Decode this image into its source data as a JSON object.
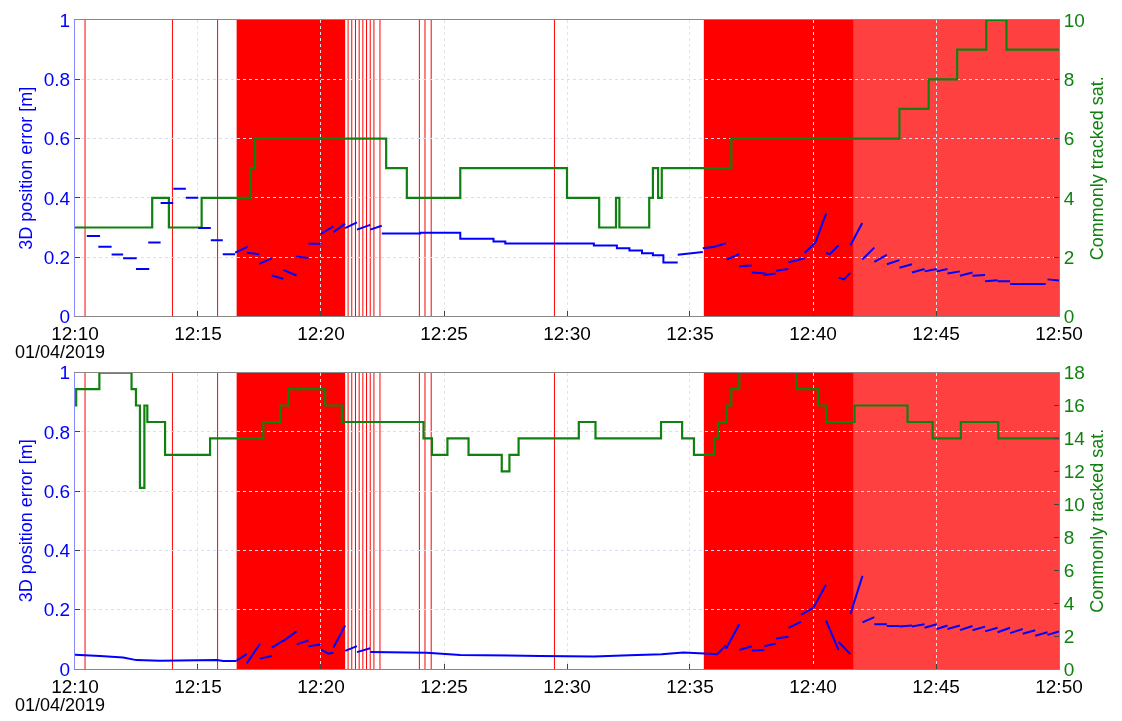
{
  "chart_data": [
    {
      "type": "line",
      "ylabel": "3D position error [m]",
      "y2label": "Commonly tracked sat.",
      "annotations": [
        "01/04/2019"
      ],
      "grid": true,
      "xlim": [
        12.1667,
        12.8333
      ],
      "xticks": [
        {
          "value": 12.1667,
          "label": "12:10"
        },
        {
          "value": 12.25,
          "label": "12:15"
        },
        {
          "value": 12.3333,
          "label": "12:20"
        },
        {
          "value": 12.4167,
          "label": "12:25"
        },
        {
          "value": 12.5,
          "label": "12:30"
        },
        {
          "value": 12.5833,
          "label": "12:35"
        },
        {
          "value": 12.6667,
          "label": "12:40"
        },
        {
          "value": 12.75,
          "label": "12:45"
        },
        {
          "value": 12.8333,
          "label": "12:50"
        }
      ],
      "ylim": [
        0,
        1
      ],
      "yticks": [
        0,
        0.2,
        0.4,
        0.6,
        0.8,
        1
      ],
      "y2lim": [
        0,
        10
      ],
      "y2ticks": [
        0,
        2,
        4,
        6,
        8,
        10
      ],
      "bands": [
        {
          "axis": "x",
          "from": 12.2762,
          "to": 12.3497,
          "color": "#ff0000"
        },
        {
          "axis": "x",
          "from": 12.5927,
          "to": 12.6943,
          "color": "#ff0000"
        },
        {
          "axis": "x",
          "from": 12.6943,
          "to": 12.8333,
          "color": "#ff4040"
        }
      ],
      "ref_lines": [
        {
          "axis": "x",
          "value": 12.1735,
          "color": "#ff0000"
        },
        {
          "axis": "x",
          "value": 12.2327,
          "color": "#ff0000"
        },
        {
          "axis": "x",
          "value": 12.2633,
          "color": "#ff0000"
        },
        {
          "axis": "x",
          "value": 12.3517,
          "color": "#ff0000"
        },
        {
          "axis": "x",
          "value": 12.3542,
          "color": "#ff0000"
        },
        {
          "axis": "x",
          "value": 12.3567,
          "color": "#ff0000"
        },
        {
          "axis": "x",
          "value": 12.3592,
          "color": "#ff0000"
        },
        {
          "axis": "x",
          "value": 12.3617,
          "color": "#ff0000"
        },
        {
          "axis": "x",
          "value": 12.3642,
          "color": "#ff0000"
        },
        {
          "axis": "x",
          "value": 12.3667,
          "color": "#ff0000"
        },
        {
          "axis": "x",
          "value": 12.3692,
          "color": "#ff0000"
        },
        {
          "axis": "x",
          "value": 12.3733,
          "color": "#ff0000"
        },
        {
          "axis": "x",
          "value": 12.4,
          "color": "#ff0000"
        },
        {
          "axis": "x",
          "value": 12.4038,
          "color": "#ff0000"
        },
        {
          "axis": "x",
          "value": 12.408,
          "color": "#ff0000"
        },
        {
          "axis": "x",
          "value": 12.4915,
          "color": "#ff0000"
        }
      ],
      "series": [
        {
          "type": "line",
          "color": "#0000ff",
          "x": [
            12.1747,
            12.1837,
            null,
            12.1825,
            12.1915,
            null,
            12.1915,
            12.1993,
            null,
            12.1993,
            12.2085,
            null,
            12.208,
            12.217,
            null,
            12.2163,
            12.2247,
            null,
            12.2247,
            12.2333,
            null,
            12.2333,
            12.2418,
            null,
            12.2418,
            12.2502,
            null,
            12.2502,
            12.2587,
            null,
            12.2587,
            12.2668,
            null,
            12.2668,
            12.2752,
            null,
            12.2752,
            12.2837,
            null,
            12.283,
            12.2915,
            null,
            12.2915,
            12.3,
            null,
            12.3,
            12.3078,
            null,
            12.3078,
            12.3168,
            null,
            12.3165,
            12.3248,
            null,
            12.3248,
            12.3332,
            null,
            12.3332,
            12.3417,
            null,
            12.3417,
            12.3497,
            null,
            12.3497,
            12.3577,
            null,
            12.3577,
            12.3667,
            null,
            12.3667,
            12.3745,
            null,
            12.3745,
            12.4005,
            12.4005,
            12.4277,
            12.4277,
            12.4502,
            12.4502,
            12.4582,
            12.4582,
            12.5182,
            12.5182,
            12.5338,
            12.5338,
            12.5423,
            12.5423,
            12.5508,
            12.5508,
            12.5582,
            12.5582,
            12.5653,
            12.5653,
            12.575,
            null,
            12.575,
            12.592,
            null,
            12.592,
            12.6,
            12.6077,
            null,
            12.6082,
            12.6167,
            null,
            12.6167,
            12.6252,
            null,
            12.6252,
            12.6348,
            null,
            12.633,
            12.6415,
            null,
            12.6415,
            12.65,
            null,
            12.65,
            12.661,
            null,
            12.661,
            12.6682,
            null,
            12.6682,
            12.6755,
            null,
            12.6755,
            12.678,
            12.684,
            null,
            12.684,
            12.6877,
            12.692,
            null,
            12.692,
            12.7,
            null,
            12.7,
            12.7082,
            null,
            12.7082,
            12.7167,
            null,
            12.7167,
            12.7252,
            null,
            12.7252,
            12.7337,
            null,
            12.7337,
            12.7422,
            null,
            12.7422,
            12.7505,
            null,
            12.7505,
            12.7578,
            null,
            12.7578,
            12.7662,
            null,
            12.7662,
            12.7747,
            null,
            12.7747,
            12.7832,
            null,
            12.7832,
            12.7917,
            null,
            12.7917,
            12.8002,
            null,
            12.8002,
            12.8243,
            null,
            12.8255,
            12.8333
          ],
          "values": [
            0.271,
            0.271,
            null,
            0.235,
            0.235,
            null,
            0.209,
            0.209,
            null,
            0.196,
            0.196,
            null,
            0.16,
            0.16,
            null,
            0.249,
            0.249,
            null,
            0.383,
            0.383,
            null,
            0.431,
            0.431,
            null,
            0.4,
            0.4,
            null,
            0.298,
            0.298,
            null,
            0.257,
            0.257,
            null,
            0.21,
            0.21,
            null,
            0.215,
            0.235,
            null,
            0.215,
            0.21,
            null,
            0.177,
            0.196,
            null,
            0.138,
            0.127,
            null,
            0.157,
            0.138,
            null,
            0.202,
            0.197,
            null,
            0.245,
            0.245,
            null,
            0.278,
            0.304,
            null,
            0.284,
            0.313,
            null,
            0.298,
            0.317,
            null,
            0.293,
            0.309,
            null,
            0.293,
            0.306,
            null,
            0.28,
            0.28,
            0.282,
            0.282,
            0.262,
            0.262,
            0.253,
            0.253,
            0.246,
            0.246,
            0.239,
            0.239,
            0.23,
            0.23,
            0.222,
            0.222,
            0.213,
            0.213,
            0.206,
            0.206,
            0.182,
            0.182,
            null,
            0.208,
            0.217,
            null,
            0.23,
            0.235,
            0.247,
            null,
            0.192,
            0.21,
            null,
            0.169,
            0.172,
            null,
            0.148,
            0.145,
            null,
            0.14,
            0.145,
            null,
            0.154,
            0.16,
            null,
            0.183,
            0.196,
            null,
            0.214,
            0.249,
            null,
            0.249,
            0.347,
            null,
            0.214,
            0.21,
            0.24,
            null,
            0.131,
            0.125,
            0.148,
            null,
            0.24,
            0.315,
            null,
            0.192,
            0.232,
            null,
            0.184,
            0.208,
            null,
            0.176,
            0.19,
            null,
            0.164,
            0.176,
            null,
            0.148,
            0.16,
            null,
            0.152,
            0.16,
            null,
            0.152,
            0.16,
            null,
            0.145,
            0.152,
            null,
            0.137,
            0.148,
            null,
            0.137,
            0.14,
            null,
            0.119,
            0.122,
            null,
            0.119,
            0.119,
            null,
            0.109,
            0.109,
            null,
            0.125,
            0.121
          ]
        },
        {
          "type": "step",
          "axis": "y2",
          "color": "#108010",
          "x": [
            12.1667,
            12.219,
            12.2303,
            12.2525,
            12.2857,
            12.2887,
            12.3775,
            12.3915,
            12.4277,
            12.5,
            12.5218,
            12.5332,
            12.5355,
            12.5557,
            12.5582,
            12.5617,
            12.5642,
            12.6113,
            12.7252,
            12.745,
            12.7643,
            12.784,
            12.7977,
            12.8333
          ],
          "values": [
            3,
            4,
            3,
            4,
            5,
            6,
            5,
            4,
            5,
            4,
            3,
            4,
            3,
            4,
            5,
            4,
            5,
            6,
            7,
            8,
            9,
            10,
            9,
            9
          ]
        }
      ]
    },
    {
      "type": "line",
      "ylabel": "3D position error [m]",
      "y2label": "Commonly tracked sat.",
      "annotations": [
        "01/04/2019"
      ],
      "grid": true,
      "xlim": [
        12.1667,
        12.8333
      ],
      "xticks": [
        {
          "value": 12.1667,
          "label": "12:10"
        },
        {
          "value": 12.25,
          "label": "12:15"
        },
        {
          "value": 12.3333,
          "label": "12:20"
        },
        {
          "value": 12.4167,
          "label": "12:25"
        },
        {
          "value": 12.5,
          "label": "12:30"
        },
        {
          "value": 12.5833,
          "label": "12:35"
        },
        {
          "value": 12.6667,
          "label": "12:40"
        },
        {
          "value": 12.75,
          "label": "12:45"
        },
        {
          "value": 12.8333,
          "label": "12:50"
        }
      ],
      "ylim": [
        0,
        1
      ],
      "yticks": [
        0,
        0.2,
        0.4,
        0.6,
        0.8,
        1
      ],
      "y2lim": [
        0,
        18
      ],
      "y2ticks": [
        0,
        2,
        4,
        6,
        8,
        10,
        12,
        14,
        16,
        18
      ],
      "bands": [
        {
          "axis": "x",
          "from": 12.2762,
          "to": 12.3497,
          "color": "#ff0000"
        },
        {
          "axis": "x",
          "from": 12.5927,
          "to": 12.6943,
          "color": "#ff0000"
        },
        {
          "axis": "x",
          "from": 12.6943,
          "to": 12.8333,
          "color": "#ff4040"
        }
      ],
      "ref_lines": [
        {
          "axis": "x",
          "value": 12.1735,
          "color": "#ff0000"
        },
        {
          "axis": "x",
          "value": 12.2327,
          "color": "#ff0000"
        },
        {
          "axis": "x",
          "value": 12.2633,
          "color": "#ff0000"
        },
        {
          "axis": "x",
          "value": 12.3517,
          "color": "#ff0000"
        },
        {
          "axis": "x",
          "value": 12.3542,
          "color": "#ff0000"
        },
        {
          "axis": "x",
          "value": 12.3567,
          "color": "#ff0000"
        },
        {
          "axis": "x",
          "value": 12.3592,
          "color": "#ff0000"
        },
        {
          "axis": "x",
          "value": 12.3617,
          "color": "#ff0000"
        },
        {
          "axis": "x",
          "value": 12.3642,
          "color": "#ff0000"
        },
        {
          "axis": "x",
          "value": 12.3667,
          "color": "#ff0000"
        },
        {
          "axis": "x",
          "value": 12.3692,
          "color": "#ff0000"
        },
        {
          "axis": "x",
          "value": 12.3733,
          "color": "#ff0000"
        },
        {
          "axis": "x",
          "value": 12.4,
          "color": "#ff0000"
        },
        {
          "axis": "x",
          "value": 12.4038,
          "color": "#ff0000"
        },
        {
          "axis": "x",
          "value": 12.408,
          "color": "#ff0000"
        },
        {
          "axis": "x",
          "value": 12.4915,
          "color": "#ff0000"
        }
      ],
      "series": [
        {
          "type": "line",
          "color": "#0000ff",
          "x": [
            12.1667,
            12.1837,
            12.1993,
            12.2083,
            12.2243,
            12.2627,
            12.2672,
            12.2762,
            null,
            12.2762,
            12.283,
            null,
            12.283,
            12.292,
            null,
            12.292,
            12.3,
            null,
            12.3,
            12.3078,
            null,
            12.3078,
            12.3168,
            null,
            12.3168,
            12.3248,
            null,
            12.3248,
            12.3332,
            null,
            12.3332,
            12.3383,
            12.3417,
            null,
            12.3417,
            12.3497,
            null,
            12.3497,
            12.3577,
            null,
            12.3577,
            12.3667,
            null,
            12.3667,
            12.405,
            12.4277,
            12.4818,
            12.5182,
            12.5423,
            12.5642,
            12.5787,
            12.5932,
            12.6017,
            12.6077,
            null,
            12.6077,
            12.6167,
            null,
            12.6167,
            12.6252,
            null,
            12.6252,
            12.6337,
            null,
            12.6337,
            12.6415,
            null,
            12.6415,
            12.65,
            null,
            12.65,
            12.6585,
            null,
            12.6585,
            12.667,
            null,
            12.667,
            12.6755,
            null,
            12.6755,
            12.684,
            null,
            12.684,
            12.692,
            null,
            12.692,
            12.7002,
            null,
            12.7002,
            12.7082,
            null,
            12.7082,
            12.7167,
            null,
            12.7167,
            12.7252,
            null,
            12.7252,
            12.7337,
            null,
            12.7337,
            12.7422,
            null,
            12.7422,
            12.7505,
            null,
            12.7505,
            12.7578,
            null,
            12.7578,
            12.7662,
            null,
            12.7662,
            12.7747,
            null,
            12.7747,
            12.7832,
            null,
            12.7832,
            12.7917,
            null,
            12.7917,
            12.8002,
            null,
            12.8002,
            12.8087,
            null,
            12.8087,
            12.8172,
            null,
            12.8172,
            12.8255,
            null,
            12.8255,
            12.8333
          ],
          "values": [
            0.048,
            0.044,
            0.039,
            0.03,
            0.028,
            0.03,
            0.027,
            0.027,
            null,
            0.028,
            0.05,
            null,
            0.019,
            0.085,
            null,
            0.035,
            0.044,
            null,
            0.072,
            0.096,
            null,
            0.094,
            0.127,
            null,
            0.083,
            0.096,
            null,
            0.077,
            0.083,
            null,
            0.066,
            0.052,
            0.055,
            null,
            0.072,
            0.147,
            null,
            0.061,
            0.077,
            null,
            0.057,
            0.07,
            null,
            0.057,
            0.055,
            0.047,
            0.044,
            0.042,
            0.046,
            0.05,
            0.056,
            0.052,
            0.05,
            0.08,
            null,
            0.068,
            0.151,
            null,
            0.064,
            0.077,
            null,
            0.062,
            0.064,
            null,
            0.077,
            0.086,
            null,
            0.103,
            0.109,
            null,
            0.139,
            0.159,
            null,
            0.183,
            0.207,
            null,
            0.207,
            0.285,
            null,
            0.163,
            0.064,
            null,
            0.091,
            0.05,
            null,
            0.186,
            0.314,
            null,
            0.157,
            0.175,
            null,
            0.151,
            0.151,
            null,
            0.145,
            0.145,
            null,
            0.143,
            0.147,
            null,
            0.143,
            0.151,
            null,
            0.139,
            0.151,
            null,
            0.135,
            0.147,
            null,
            0.135,
            0.147,
            null,
            0.131,
            0.145,
            null,
            0.131,
            0.143,
            null,
            0.127,
            0.139,
            null,
            0.124,
            0.139,
            null,
            0.121,
            0.135,
            null,
            0.119,
            0.131,
            null,
            0.112,
            0.124,
            null,
            0.115,
            0.127
          ]
        },
        {
          "type": "step",
          "axis": "y2",
          "color": "#108010",
          "x": [
            12.1667,
            12.1675,
            12.1832,
            12.205,
            12.208,
            12.2107,
            12.2137,
            12.2157,
            12.2277,
            12.2582,
            12.2943,
            12.3057,
            12.3113,
            12.3362,
            12.3475,
            12.4028,
            12.4085,
            12.419,
            12.4333,
            12.4558,
            12.461,
            12.4672,
            12.508,
            12.5193,
            12.5637,
            12.578,
            12.586,
            12.5997,
            12.6023,
            12.6082,
            12.6113,
            12.6167,
            12.6557,
            12.67,
            12.6755,
            12.6948,
            12.7307,
            12.7477,
            12.7668,
            12.7922,
            12.8333
          ],
          "values": [
            16,
            17,
            18,
            17,
            16,
            11,
            16,
            15,
            13,
            14,
            15,
            16,
            17,
            16,
            15,
            14,
            13,
            14,
            13,
            12,
            13,
            14,
            15,
            14,
            15,
            14,
            13,
            14,
            15,
            16,
            17,
            18,
            17,
            16,
            15,
            16,
            15,
            14,
            15,
            14,
            14
          ]
        }
      ]
    }
  ]
}
